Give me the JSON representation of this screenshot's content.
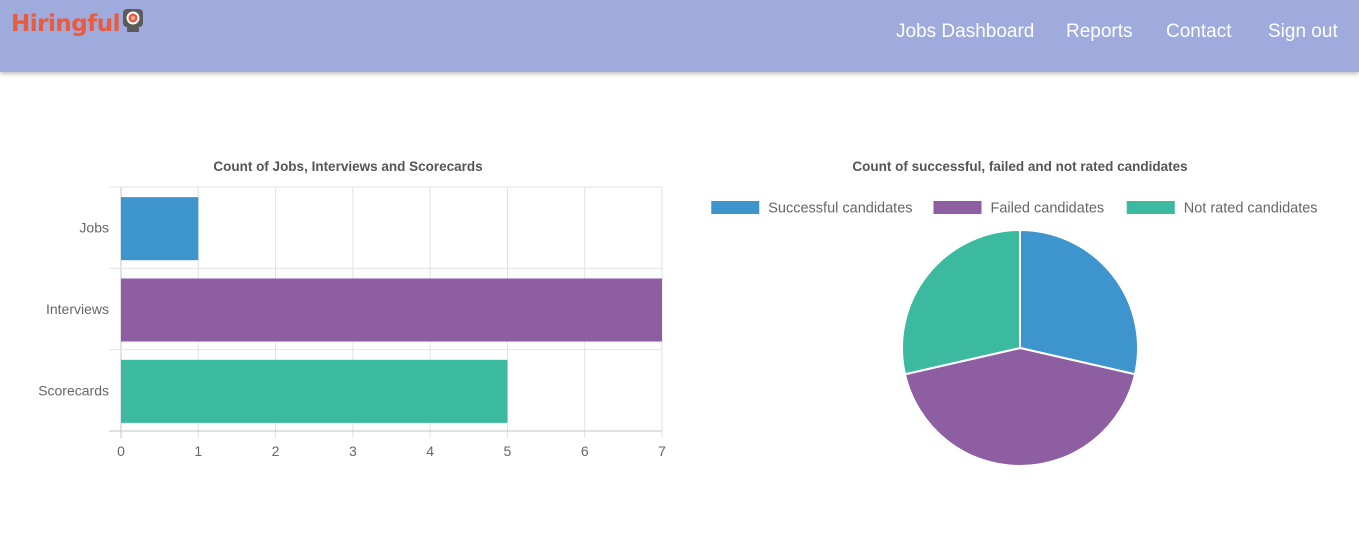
{
  "header": {
    "logo_text": "Hiringful",
    "nav": [
      {
        "label": "Jobs Dashboard"
      },
      {
        "label": "Reports"
      },
      {
        "label": "Contact"
      },
      {
        "label": "Sign out"
      }
    ],
    "background_color": "#9faadd",
    "logo_color": "#ea5a3c"
  },
  "chart_data": [
    {
      "type": "bar",
      "orientation": "horizontal",
      "title": "Count of Jobs, Interviews and Scorecards",
      "categories": [
        "Jobs",
        "Interviews",
        "Scorecards"
      ],
      "values": [
        1,
        7,
        5
      ],
      "colors": [
        "#3e95cd",
        "#8e5ea2",
        "#3cba9f"
      ],
      "xlim": [
        0,
        7
      ],
      "xticks": [
        "0",
        "1",
        "2",
        "3",
        "4",
        "5",
        "6",
        "7"
      ],
      "grid": true,
      "legend": "none"
    },
    {
      "type": "pie",
      "title": "Count of successful, failed and not rated candidates",
      "labels": [
        "Successful candidates",
        "Failed candidates",
        "Not rated candidates"
      ],
      "values": [
        2,
        3,
        2
      ],
      "colors": [
        "#3e95cd",
        "#8e5ea2",
        "#3cba9f"
      ],
      "legend": "top"
    }
  ]
}
